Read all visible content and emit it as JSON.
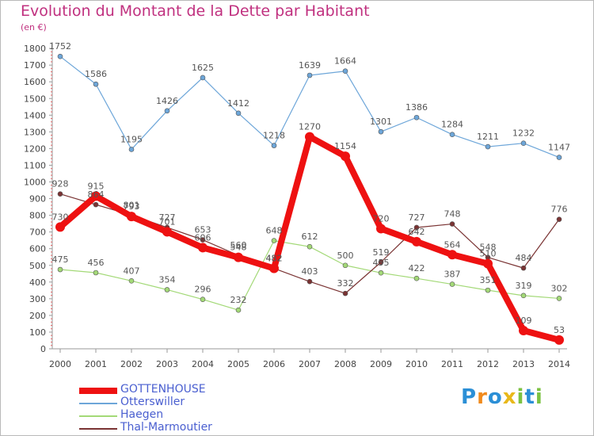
{
  "header": {
    "title": "Evolution du Montant de la Dette par Habitant",
    "unit": "(en €)"
  },
  "logo": {
    "text": "Proxiti",
    "letters": [
      {
        "ch": "P",
        "color": "#2b8fd6"
      },
      {
        "ch": "r",
        "color": "#f08a1c"
      },
      {
        "ch": "o",
        "color": "#2b8fd6"
      },
      {
        "ch": "x",
        "color": "#e8b81a"
      },
      {
        "ch": "i",
        "color": "#7cc242"
      },
      {
        "ch": "t",
        "color": "#2b8fd6"
      },
      {
        "ch": "i",
        "color": "#7cc242"
      }
    ]
  },
  "chart_data": {
    "type": "line",
    "title": "Evolution du Montant de la Dette par Habitant",
    "ylabel": "(en €)",
    "xlabel": "",
    "x": [
      "2000",
      "2001",
      "2002",
      "2003",
      "2004",
      "2005",
      "2006",
      "2007",
      "2008",
      "2009",
      "2010",
      "2011",
      "2012",
      "2013",
      "2014"
    ],
    "ylim": [
      0,
      1800
    ],
    "yticks": [
      0,
      100,
      200,
      300,
      400,
      500,
      600,
      700,
      800,
      900,
      1000,
      1100,
      1200,
      1300,
      1400,
      1500,
      1600,
      1700,
      1800
    ],
    "grid": false,
    "legend_position": "bottom-left",
    "series": [
      {
        "name": "GOTTENHOUSE",
        "color": "#ee1111",
        "values": [
          730,
          915,
          793,
          701,
          606,
          548,
          482,
          1270,
          1154,
          720,
          642,
          564,
          510,
          109,
          53
        ],
        "labels": [
          "730",
          "915",
          "793",
          "701",
          "606",
          "548",
          "482",
          "1270",
          "1154",
          "720",
          "642",
          "564",
          "510",
          "109",
          "53"
        ]
      },
      {
        "name": "Otterswiller",
        "color": "#6da6d9",
        "values": [
          1752,
          1586,
          1195,
          1426,
          1625,
          1412,
          1218,
          1639,
          1664,
          1301,
          1386,
          1284,
          1211,
          1232,
          1147
        ],
        "labels": [
          "1752",
          "1586",
          "1195",
          "1426",
          "1625",
          "1412",
          "1218",
          "1639",
          "1664",
          "1301",
          "1386",
          "1284",
          "1211",
          "1232",
          "1147"
        ]
      },
      {
        "name": "Haegen",
        "color": "#a3d977",
        "values": [
          475,
          456,
          407,
          354,
          296,
          232,
          648,
          612,
          500,
          455,
          422,
          387,
          351,
          319,
          302
        ],
        "labels": [
          "475",
          "456",
          "407",
          "354",
          "296",
          "232",
          "648",
          "612",
          "500",
          "455",
          "422",
          "387",
          "351",
          "319",
          "302"
        ]
      },
      {
        "name": "Thal-Marmoutier",
        "color": "#7a3333",
        "values": [
          928,
          864,
          801,
          727,
          653,
          560,
          482,
          403,
          332,
          519,
          727,
          748,
          548,
          484,
          776
        ],
        "labels": [
          "928",
          "864",
          "801",
          "727",
          "653",
          "560",
          "482",
          "403",
          "332",
          "519",
          "727",
          "748",
          "548",
          "484",
          "776"
        ]
      }
    ]
  }
}
